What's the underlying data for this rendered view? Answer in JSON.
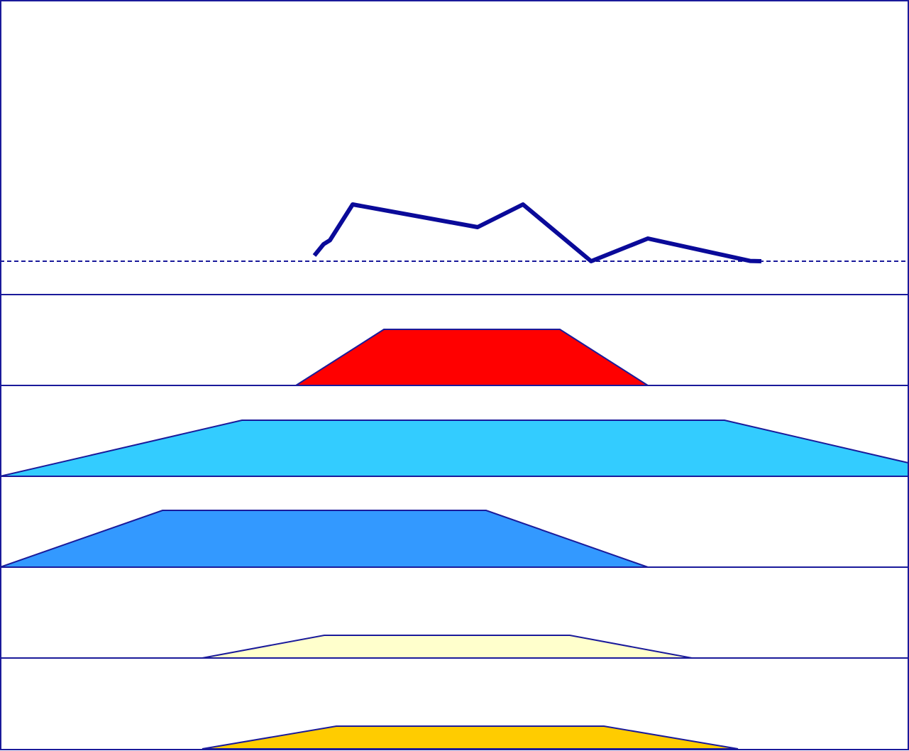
{
  "colors": {
    "frame": "#1a1a9a",
    "line": "#0a0a99",
    "baseline": "#1a1a9a"
  },
  "chart_data": [
    {
      "type": "line",
      "title": "",
      "xlabel": "",
      "ylabel": "",
      "xlim": [
        0,
        1281
      ],
      "ylim": [
        0,
        1
      ],
      "baseline": 0,
      "grid": false,
      "legend": "none",
      "series": [
        {
          "color": "#0a0a99",
          "x": [
            443,
            456,
            465,
            497,
            673,
            737,
            833,
            913,
            1057,
            1073
          ],
          "y": [
            0.02,
            0.06,
            0.074,
            0.2,
            0.12,
            0.2,
            0.0,
            0.08,
            0.001,
            0.0
          ]
        }
      ]
    },
    {
      "type": "area",
      "shape": "trapezoid",
      "xlim": [
        0,
        1281
      ],
      "ylim": [
        0,
        1
      ],
      "series": [
        {
          "color": "#ff0000",
          "x": [
            417,
            541,
            789,
            913
          ],
          "y": [
            0,
            1,
            1,
            0
          ]
        }
      ]
    },
    {
      "type": "area",
      "shape": "trapezoid",
      "xlim": [
        0,
        1281
      ],
      "ylim": [
        0,
        1
      ],
      "series": [
        {
          "color": "#33ccff",
          "x": [
            0,
            341,
            1021,
            1362
          ],
          "y": [
            0,
            1,
            1,
            0
          ]
        }
      ]
    },
    {
      "type": "area",
      "shape": "trapezoid",
      "xlim": [
        0,
        1281
      ],
      "ylim": [
        0,
        1
      ],
      "series": [
        {
          "color": "#3399ff",
          "x": [
            0,
            229,
            685,
            913
          ],
          "y": [
            0,
            1,
            1,
            0
          ]
        }
      ]
    },
    {
      "type": "area",
      "shape": "trapezoid",
      "xlim": [
        0,
        1281
      ],
      "ylim": [
        0,
        1
      ],
      "series": [
        {
          "color": "#ffffcc",
          "x": [
            285,
            457,
            803,
            975
          ],
          "y": [
            0,
            0.4,
            0.4,
            0
          ]
        }
      ]
    },
    {
      "type": "area",
      "shape": "trapezoid",
      "xlim": [
        0,
        1281
      ],
      "ylim": [
        0,
        1
      ],
      "series": [
        {
          "color": "#ffcc00",
          "x": [
            285,
            474,
            851,
            1040
          ],
          "y": [
            0,
            0.4,
            0.4,
            0
          ]
        }
      ]
    }
  ]
}
